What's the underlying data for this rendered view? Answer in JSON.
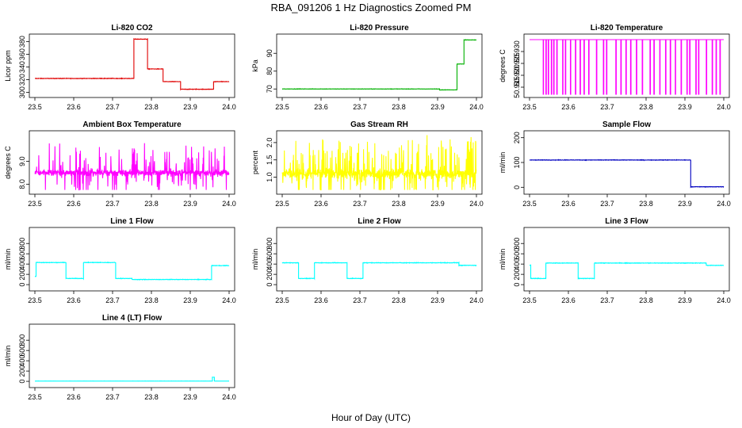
{
  "figure": {
    "title": "RBA_091206  1 Hz Diagnostics Zoomed PM",
    "xlabel": "Hour of Day (UTC)"
  },
  "chart_data": [
    {
      "type": "line",
      "title": "Li-820 CO2",
      "ylabel": "Licor ppm",
      "color": "#e00000",
      "xlim": [
        23.5,
        24.0
      ],
      "xticks": [
        "23.5",
        "23.6",
        "23.7",
        "23.8",
        "23.9",
        "24.0"
      ],
      "ylim": [
        297,
        387
      ],
      "yticks": [
        300,
        320,
        340,
        360,
        380
      ],
      "noise": 0.6,
      "segments": [
        [
          23.5,
          23.755,
          322
        ],
        [
          23.755,
          23.79,
          384
        ],
        [
          23.79,
          23.83,
          337
        ],
        [
          23.83,
          23.875,
          317
        ],
        [
          23.875,
          23.96,
          305
        ],
        [
          23.96,
          24.0,
          317
        ]
      ]
    },
    {
      "type": "line",
      "title": "Li-820 Pressure",
      "ylabel": "kPa",
      "color": "#00b000",
      "xlim": [
        23.5,
        24.0
      ],
      "xticks": [
        "23.5",
        "23.6",
        "23.7",
        "23.8",
        "23.9",
        "24.0"
      ],
      "ylim": [
        67,
        99
      ],
      "yticks": [
        70,
        80,
        90
      ],
      "noise": 0.15,
      "segments": [
        [
          23.5,
          23.905,
          70
        ],
        [
          23.905,
          23.95,
          69.5
        ],
        [
          23.95,
          23.968,
          84
        ],
        [
          23.968,
          24.0,
          97.5
        ]
      ]
    },
    {
      "type": "line",
      "title": "Li-820 Temperature",
      "ylabel": "degrees C",
      "color": "#ff00ff",
      "xlim": [
        23.5,
        24.0
      ],
      "xticks": [
        "23.5",
        "23.6",
        "23.7",
        "23.8",
        "23.9",
        "24.0"
      ],
      "ylim": [
        50.912,
        50.936
      ],
      "yticks": [
        50.915,
        50.92,
        50.925,
        50.93
      ],
      "ytick_labels": [
        "50.915",
        "50.920",
        "50.925",
        "50.930"
      ],
      "upper_value": 50.935,
      "lower_value": 50.912,
      "drop_times": [
        23.535,
        23.542,
        23.548,
        23.556,
        23.562,
        23.57,
        23.585,
        23.592,
        23.605,
        23.618,
        23.63,
        23.64,
        23.652,
        23.672,
        23.69,
        23.698,
        23.722,
        23.735,
        23.748,
        23.76,
        23.775,
        23.79,
        23.81,
        23.82,
        23.835,
        23.85,
        23.862,
        23.875,
        23.89,
        23.905,
        23.912,
        23.928,
        23.935,
        23.955,
        23.97,
        23.98,
        23.99
      ]
    },
    {
      "type": "line",
      "title": "Ambient Box Temperature",
      "ylabel": "degrees C",
      "color": "#ff00ff",
      "xlim": [
        23.5,
        24.0
      ],
      "xticks": [
        "23.5",
        "23.6",
        "23.7",
        "23.8",
        "23.9",
        "24.0"
      ],
      "ylim": [
        7.7,
        10.2
      ],
      "yticks": [
        8.0,
        9.0
      ],
      "ytick_labels": [
        "8.0",
        "9.0"
      ],
      "baseline": 8.5,
      "noise": 0.12,
      "spike_amp": 1.2,
      "spike_rate": 0.18
    },
    {
      "type": "line",
      "title": "Gas Stream RH",
      "ylabel": "percent",
      "color": "#ffff00",
      "xlim": [
        23.5,
        24.0
      ],
      "xticks": [
        "23.5",
        "23.6",
        "23.7",
        "23.8",
        "23.9",
        "24.0"
      ],
      "ylim": [
        0.6,
        2.25
      ],
      "yticks": [
        1.0,
        1.5,
        2.0
      ],
      "ytick_labels": [
        "1.0",
        "1.5",
        "2.0"
      ],
      "baseline": 1.1,
      "noise": 0.12,
      "spike_amp": 0.9,
      "spike_rate": 0.22
    },
    {
      "type": "line",
      "title": "Sample Flow",
      "ylabel": "ml/min",
      "color": "#0000c0",
      "xlim": [
        23.5,
        24.0
      ],
      "xticks": [
        "23.5",
        "23.6",
        "23.7",
        "23.8",
        "23.9",
        "24.0"
      ],
      "ylim": [
        -15,
        215
      ],
      "yticks": [
        0,
        100,
        200
      ],
      "noise": 1.5,
      "segments": [
        [
          23.5,
          23.915,
          110
        ],
        [
          23.915,
          24.0,
          2
        ]
      ]
    },
    {
      "type": "line",
      "title": "Line 1 Flow",
      "ylabel": "ml/min",
      "color": "#00ffff",
      "xlim": [
        23.5,
        24.0
      ],
      "xticks": [
        "23.5",
        "23.6",
        "23.7",
        "23.8",
        "23.9",
        "24.0"
      ],
      "ylim": [
        -60,
        1050
      ],
      "yticks": [
        0,
        200,
        400,
        600,
        800
      ],
      "noise": 8,
      "segments": [
        [
          23.5,
          23.503,
          160
        ],
        [
          23.503,
          23.58,
          430
        ],
        [
          23.58,
          23.625,
          120
        ],
        [
          23.625,
          23.708,
          430
        ],
        [
          23.708,
          23.75,
          120
        ],
        [
          23.75,
          23.955,
          100
        ],
        [
          23.955,
          24.0,
          370
        ]
      ]
    },
    {
      "type": "line",
      "title": "Line 2 Flow",
      "ylabel": "ml/min",
      "color": "#00ffff",
      "xlim": [
        23.5,
        24.0
      ],
      "xticks": [
        "23.5",
        "23.6",
        "23.7",
        "23.8",
        "23.9",
        "24.0"
      ],
      "ylim": [
        -60,
        1050
      ],
      "yticks": [
        0,
        200,
        400,
        600,
        800
      ],
      "noise": 8,
      "segments": [
        [
          23.5,
          23.542,
          425
        ],
        [
          23.542,
          23.583,
          120
        ],
        [
          23.583,
          23.667,
          425
        ],
        [
          23.667,
          23.708,
          120
        ],
        [
          23.708,
          23.955,
          425
        ],
        [
          23.955,
          24.0,
          375
        ]
      ]
    },
    {
      "type": "line",
      "title": "Line 3 Flow",
      "ylabel": "ml/min",
      "color": "#00ffff",
      "xlim": [
        23.5,
        24.0
      ],
      "xticks": [
        "23.5",
        "23.6",
        "23.7",
        "23.8",
        "23.9",
        "24.0"
      ],
      "ylim": [
        -60,
        1050
      ],
      "yticks": [
        0,
        200,
        400,
        600,
        800
      ],
      "noise": 8,
      "segments": [
        [
          23.5,
          23.503,
          380
        ],
        [
          23.503,
          23.542,
          120
        ],
        [
          23.542,
          23.625,
          420
        ],
        [
          23.625,
          23.667,
          120
        ],
        [
          23.667,
          23.955,
          420
        ],
        [
          23.955,
          24.0,
          375
        ]
      ]
    },
    {
      "type": "line",
      "title": "Line 4 (LT) Flow",
      "ylabel": "ml/min",
      "color": "#00ffff",
      "xlim": [
        23.5,
        24.0
      ],
      "xticks": [
        "23.5",
        "23.6",
        "23.7",
        "23.8",
        "23.9",
        "24.0"
      ],
      "ylim": [
        -60,
        1050
      ],
      "yticks": [
        0,
        200,
        400,
        600,
        800
      ],
      "noise": 1.5,
      "segments": [
        [
          23.5,
          23.957,
          5
        ],
        [
          23.957,
          23.962,
          80
        ],
        [
          23.962,
          24.0,
          5
        ]
      ]
    }
  ]
}
